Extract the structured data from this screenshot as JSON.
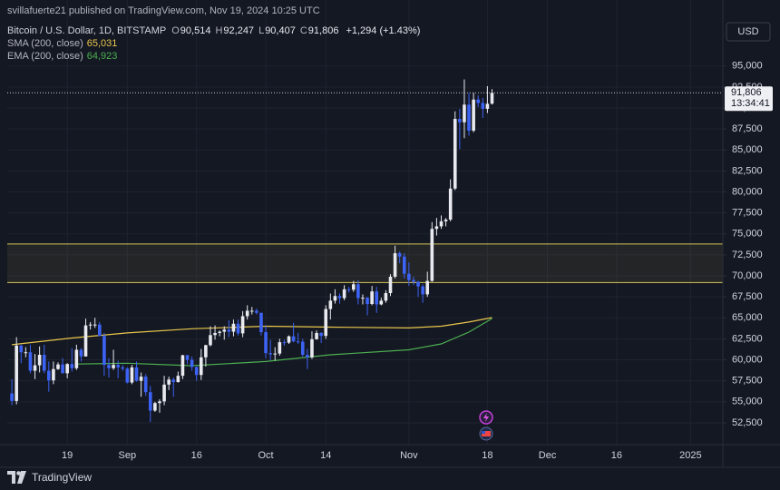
{
  "header": {
    "byline": "svillafuerte21 published on TradingView.com, Nov 19, 2024 10:25 UTC",
    "symbol": "Bitcoin / U.S. Dollar, 1D, BITSTAMP",
    "ohlc": [
      {
        "key": "O",
        "value": "90,514"
      },
      {
        "key": "H",
        "value": "92,247"
      },
      {
        "key": "L",
        "value": "90,407"
      },
      {
        "key": "C",
        "value": "91,806"
      }
    ],
    "change": "+1,294 (+1.43%)"
  },
  "footer": {
    "brand": "TradingView"
  },
  "chart_data": {
    "type": "candlestick",
    "currency": "USD",
    "price_tag": {
      "price": "91,806",
      "countdown": "13:34:41"
    },
    "xlim": [
      "2024-08-06",
      "2025-01-08"
    ],
    "xticks": [
      {
        "value": "2024-08-19",
        "label": "19"
      },
      {
        "value": "2024-09-01",
        "label": "Sep"
      },
      {
        "value": "2024-09-16",
        "label": "16"
      },
      {
        "value": "2024-10-01",
        "label": "Oct"
      },
      {
        "value": "2024-10-14",
        "label": "14"
      },
      {
        "value": "2024-11-01",
        "label": "Nov"
      },
      {
        "value": "2024-11-18",
        "label": "18"
      },
      {
        "value": "2024-12-01",
        "label": "Dec"
      },
      {
        "value": "2024-12-16",
        "label": "16"
      },
      {
        "value": "2025-01-01",
        "label": "2025"
      }
    ],
    "ylim": [
      49900,
      100700
    ],
    "yticks": [
      {
        "value": 52500,
        "label": "52,500"
      },
      {
        "value": 55000,
        "label": "55,000"
      },
      {
        "value": 57500,
        "label": "57,500"
      },
      {
        "value": 60000,
        "label": "60,000"
      },
      {
        "value": 62500,
        "label": "62,500"
      },
      {
        "value": 65000,
        "label": "65,000"
      },
      {
        "value": 67500,
        "label": "67,500"
      },
      {
        "value": 70000,
        "label": "70,000"
      },
      {
        "value": 72500,
        "label": "72,500"
      },
      {
        "value": 75000,
        "label": "75,000"
      },
      {
        "value": 77500,
        "label": "77,500"
      },
      {
        "value": 80000,
        "label": "80,000"
      },
      {
        "value": 82500,
        "label": "82,500"
      },
      {
        "value": 85000,
        "label": "85,000"
      },
      {
        "value": 87500,
        "label": "87,500"
      },
      {
        "value": 90000,
        "label": "90,000"
      },
      {
        "value": 92500,
        "label": "92,500"
      },
      {
        "value": 95000,
        "label": "95,000"
      }
    ],
    "grid": true,
    "zones": [
      {
        "from": 69200,
        "to": 73800,
        "color": "#d8c55a"
      }
    ],
    "candles": {
      "up_color": "#e8eaef",
      "down_color": "#3d63f5",
      "x": [
        "2024-08-07",
        "2024-08-08",
        "2024-08-09",
        "2024-08-10",
        "2024-08-11",
        "2024-08-12",
        "2024-08-13",
        "2024-08-14",
        "2024-08-15",
        "2024-08-16",
        "2024-08-17",
        "2024-08-18",
        "2024-08-19",
        "2024-08-20",
        "2024-08-21",
        "2024-08-22",
        "2024-08-23",
        "2024-08-24",
        "2024-08-25",
        "2024-08-26",
        "2024-08-27",
        "2024-08-28",
        "2024-08-29",
        "2024-08-30",
        "2024-08-31",
        "2024-09-01",
        "2024-09-02",
        "2024-09-03",
        "2024-09-04",
        "2024-09-05",
        "2024-09-06",
        "2024-09-07",
        "2024-09-08",
        "2024-09-09",
        "2024-09-10",
        "2024-09-11",
        "2024-09-12",
        "2024-09-13",
        "2024-09-14",
        "2024-09-15",
        "2024-09-16",
        "2024-09-17",
        "2024-09-18",
        "2024-09-19",
        "2024-09-20",
        "2024-09-21",
        "2024-09-22",
        "2024-09-23",
        "2024-09-24",
        "2024-09-25",
        "2024-09-26",
        "2024-09-27",
        "2024-09-28",
        "2024-09-29",
        "2024-09-30",
        "2024-10-01",
        "2024-10-02",
        "2024-10-03",
        "2024-10-04",
        "2024-10-05",
        "2024-10-06",
        "2024-10-07",
        "2024-10-08",
        "2024-10-09",
        "2024-10-10",
        "2024-10-11",
        "2024-10-12",
        "2024-10-13",
        "2024-10-14",
        "2024-10-15",
        "2024-10-16",
        "2024-10-17",
        "2024-10-18",
        "2024-10-19",
        "2024-10-20",
        "2024-10-21",
        "2024-10-22",
        "2024-10-23",
        "2024-10-24",
        "2024-10-25",
        "2024-10-26",
        "2024-10-27",
        "2024-10-28",
        "2024-10-29",
        "2024-10-30",
        "2024-10-31",
        "2024-11-01",
        "2024-11-02",
        "2024-11-03",
        "2024-11-04",
        "2024-11-05",
        "2024-11-06",
        "2024-11-07",
        "2024-11-08",
        "2024-11-09",
        "2024-11-10",
        "2024-11-11",
        "2024-11-12",
        "2024-11-13",
        "2024-11-14",
        "2024-11-15",
        "2024-11-16",
        "2024-11-17",
        "2024-11-18",
        "2024-11-19"
      ],
      "open": [
        56000,
        55100,
        61700,
        60900,
        60900,
        58700,
        59350,
        60600,
        58700,
        57550,
        58900,
        59450,
        58400,
        59500,
        59000,
        61200,
        60400,
        64100,
        64200,
        64200,
        62850,
        59400,
        59000,
        59400,
        59100,
        58950,
        57300,
        59100,
        57500,
        58000,
        56150,
        53950,
        54850,
        55050,
        57050,
        57650,
        57350,
        58100,
        60550,
        60000,
        59150,
        58200,
        60300,
        61750,
        62950,
        63200,
        63350,
        63600,
        63350,
        64300,
        63150,
        65200,
        65850,
        65850,
        65600,
        63300,
        60800,
        60650,
        60750,
        62100,
        62050,
        62800,
        62200,
        62150,
        60600,
        60300,
        62450,
        63200,
        62850,
        66050,
        67050,
        67600,
        67350,
        68400,
        68350,
        69000,
        67350,
        67400,
        66650,
        68150,
        66600,
        67050,
        67950,
        69900,
        72700,
        72300,
        70250,
        69500,
        69300,
        68750,
        67800,
        69400,
        75600,
        75900,
        76500,
        76700,
        80400,
        88700,
        88300,
        90400,
        87300,
        91000,
        90600,
        89900,
        90514
      ],
      "high": [
        57700,
        62700,
        61800,
        61500,
        61800,
        60700,
        61600,
        61800,
        59800,
        59800,
        59700,
        60200,
        59600,
        61400,
        61800,
        61400,
        64900,
        64500,
        65000,
        64500,
        63200,
        60200,
        61200,
        59900,
        59400,
        59100,
        59400,
        59800,
        58500,
        58300,
        56900,
        55000,
        55300,
        58100,
        58000,
        57900,
        58600,
        60600,
        60600,
        60400,
        59200,
        61300,
        61800,
        64000,
        64100,
        63500,
        64000,
        64700,
        64800,
        64800,
        65800,
        66500,
        66300,
        66100,
        65600,
        64100,
        62400,
        61500,
        62500,
        62400,
        62900,
        64400,
        63200,
        62500,
        61300,
        63400,
        63500,
        63300,
        66500,
        67900,
        68400,
        67900,
        68900,
        68700,
        69400,
        69500,
        67800,
        67500,
        68800,
        68700,
        67400,
        68300,
        70200,
        73600,
        72900,
        72700,
        71600,
        69900,
        69400,
        69000,
        70500,
        76400,
        76900,
        77200,
        76900,
        81500,
        89600,
        89900,
        93400,
        91800,
        91800,
        91500,
        91200,
        92600,
        92247
      ],
      "low": [
        54600,
        54700,
        59600,
        60300,
        58400,
        57700,
        58500,
        58400,
        56200,
        57100,
        58800,
        58400,
        57800,
        58600,
        58800,
        59800,
        60400,
        63600,
        63800,
        62800,
        58100,
        57900,
        58800,
        57800,
        58700,
        57200,
        57100,
        57400,
        55600,
        55700,
        52600,
        53800,
        53700,
        54600,
        56400,
        55600,
        57300,
        57700,
        59500,
        58700,
        57500,
        57600,
        59200,
        61600,
        62400,
        62800,
        62400,
        62700,
        62800,
        62900,
        62700,
        64800,
        65400,
        65400,
        62900,
        60200,
        60000,
        59900,
        60500,
        61700,
        61900,
        62100,
        61900,
        60400,
        58900,
        60100,
        62400,
        62000,
        62500,
        64800,
        66700,
        66700,
        67100,
        68000,
        68100,
        66600,
        66600,
        65300,
        66500,
        65600,
        66500,
        66800,
        67600,
        69700,
        71500,
        69700,
        68800,
        68900,
        67500,
        66800,
        67500,
        69300,
        74800,
        75600,
        75900,
        76500,
        80200,
        85100,
        86400,
        86700,
        87100,
        90100,
        88800,
        89400,
        90407
      ],
      "close": [
        55100,
        61700,
        60900,
        60900,
        58700,
        59350,
        60600,
        58700,
        57550,
        58900,
        59450,
        58400,
        59500,
        59000,
        61200,
        60400,
        64100,
        64200,
        64200,
        62850,
        59400,
        59000,
        59400,
        59100,
        58950,
        57300,
        59100,
        57500,
        58000,
        56150,
        53950,
        54850,
        55050,
        57050,
        57650,
        57350,
        58100,
        60550,
        60000,
        59150,
        58200,
        60300,
        61750,
        62950,
        63200,
        63350,
        63600,
        63350,
        64300,
        63150,
        65200,
        65850,
        65850,
        65600,
        63300,
        60800,
        60650,
        60750,
        62100,
        62050,
        62800,
        62200,
        62150,
        60600,
        60300,
        62450,
        63200,
        62850,
        66050,
        67050,
        67600,
        67350,
        68400,
        68350,
        69000,
        67350,
        67400,
        66650,
        68150,
        66600,
        67050,
        67950,
        69900,
        72700,
        72300,
        70250,
        69500,
        69300,
        68750,
        67800,
        69400,
        75600,
        75900,
        76500,
        76700,
        80400,
        88700,
        88300,
        90400,
        87300,
        91000,
        90600,
        89900,
        90500,
        91806
      ]
    },
    "indicators": [
      {
        "name": "SMA (200, close)",
        "legend_value": "65,031",
        "color": "#e8c64b",
        "x": [
          "2024-08-07",
          "2024-08-20",
          "2024-09-01",
          "2024-09-15",
          "2024-10-01",
          "2024-10-15",
          "2024-11-01",
          "2024-11-08",
          "2024-11-14",
          "2024-11-19"
        ],
        "values": [
          61800,
          62600,
          63200,
          63700,
          64000,
          63900,
          63800,
          64000,
          64500,
          65031
        ]
      },
      {
        "name": "EMA (200, close)",
        "legend_value": "64,923",
        "color": "#4caf50",
        "x": [
          "2024-08-21",
          "2024-09-01",
          "2024-09-15",
          "2024-10-01",
          "2024-10-15",
          "2024-11-01",
          "2024-11-08",
          "2024-11-14",
          "2024-11-19"
        ],
        "values": [
          59500,
          59600,
          59300,
          59800,
          60600,
          61200,
          61900,
          63300,
          64923
        ]
      }
    ]
  }
}
